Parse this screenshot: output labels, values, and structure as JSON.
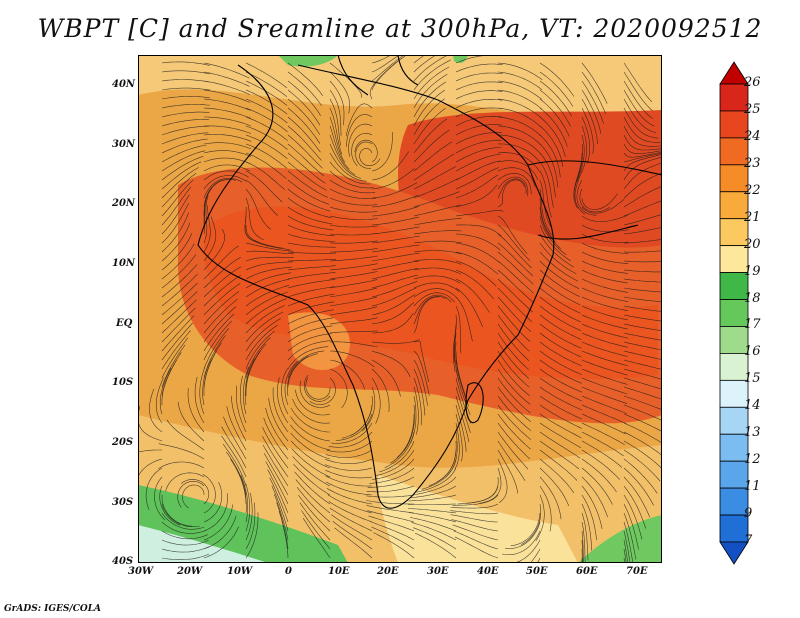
{
  "title": "WBPT [C] and Sreamline at 300hPa, VT: 2020092512",
  "credit": "GrADS: IGES/COLA",
  "map": {
    "lat_labels": [
      "40N",
      "30N",
      "20N",
      "10N",
      "EQ",
      "10S",
      "20S",
      "30S",
      "40S"
    ],
    "lon_labels": [
      "30W",
      "20W",
      "10W",
      "0",
      "10E",
      "20E",
      "30E",
      "40E",
      "50E",
      "60E",
      "70E"
    ]
  },
  "colorbar": {
    "levels": [
      "26",
      "25",
      "24",
      "23",
      "22",
      "21",
      "20",
      "19",
      "18",
      "17",
      "16",
      "15",
      "14",
      "13",
      "12",
      "11",
      "9",
      "7"
    ],
    "colors": [
      "#c00000",
      "#d8261a",
      "#e8461e",
      "#f06a22",
      "#f68c28",
      "#f8aa3a",
      "#fbc960",
      "#fde79a",
      "#3fb848",
      "#64c95a",
      "#9edc8c",
      "#d8f2d2",
      "#ddf3fb",
      "#a6d6f4",
      "#7bbdf0",
      "#5aa6ea",
      "#3a8de2",
      "#1f6fd6",
      "#1250c4"
    ]
  },
  "legend_colors": {
    "background": "#e9a13a",
    "warm": "#e7602a",
    "hot": "#e24a23",
    "cool": "#f6d98a",
    "green": "#7fcf66",
    "pale": "#cfefe1"
  }
}
